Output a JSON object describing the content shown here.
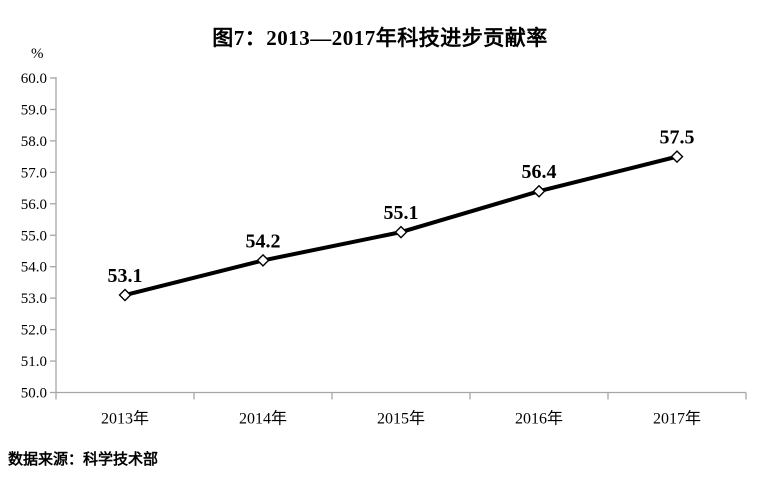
{
  "title": "图7：2013—2017年科技进步贡献率",
  "source_note": "数据来源：科学技术部",
  "chart_data": {
    "type": "line",
    "title": "图7：2013—2017年科技进步贡献率",
    "categories": [
      "2013年",
      "2014年",
      "2015年",
      "2016年",
      "2017年"
    ],
    "series": [
      {
        "name": "科技进步贡献率",
        "values": [
          53.1,
          54.2,
          55.1,
          56.4,
          57.5
        ]
      }
    ],
    "data_labels": [
      "53.1",
      "54.2",
      "55.1",
      "56.4",
      "57.5"
    ],
    "y_axis_unit": "%",
    "ylim": [
      50.0,
      60.0
    ],
    "ytick_step": 1.0,
    "ytick_labels": [
      "50.0",
      "51.0",
      "52.0",
      "53.0",
      "54.0",
      "55.0",
      "56.0",
      "57.0",
      "58.0",
      "59.0",
      "60.0"
    ],
    "xlabel": "",
    "ylabel": "%",
    "grid": false,
    "legend_position": "none",
    "line_color": "#000000",
    "marker_style": "diamond-white",
    "axis_color": "#a6a6a6",
    "text_color": "#000000",
    "background_color": "#ffffff"
  }
}
